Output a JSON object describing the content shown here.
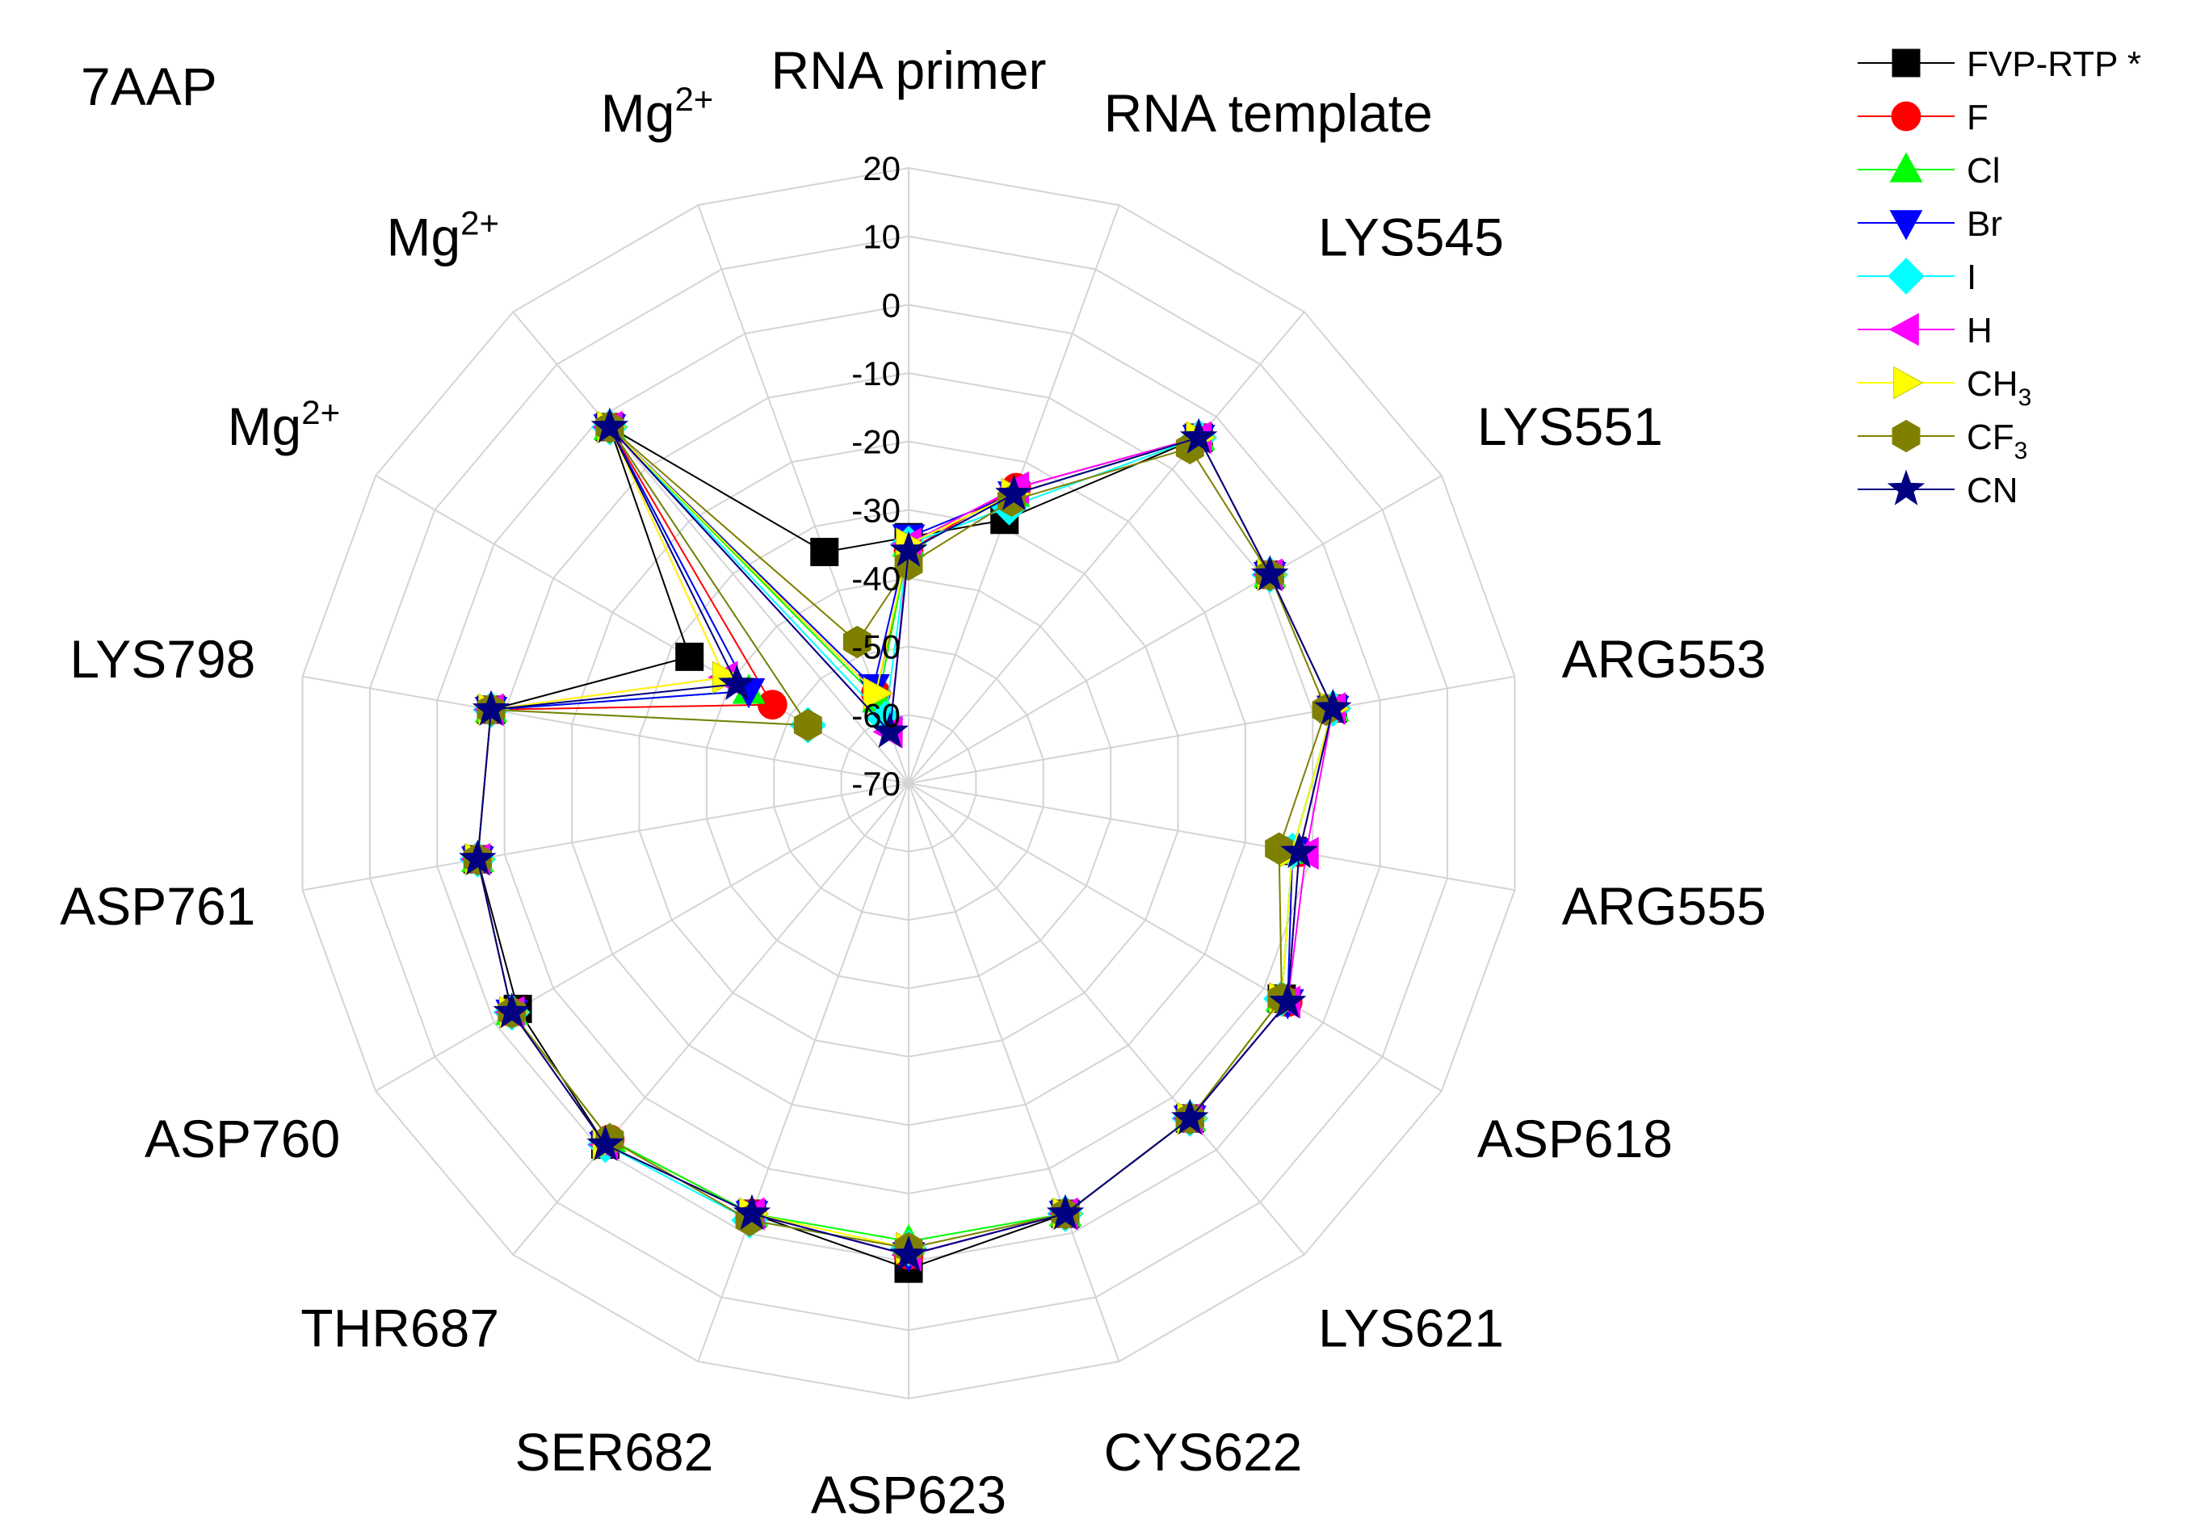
{
  "chart_data": {
    "type": "radar",
    "title": "7AAP",
    "rlim": [
      -70,
      20
    ],
    "ticks": [
      "20",
      "10",
      "0",
      "-10",
      "-20",
      "-30",
      "-40",
      "-50",
      "-60",
      "-70"
    ],
    "tick_values": [
      20,
      10,
      0,
      -10,
      -20,
      -30,
      -40,
      -50,
      -60,
      -70
    ],
    "categories": [
      {
        "label": "RNA primer"
      },
      {
        "label": "RNA template"
      },
      {
        "label": "LYS545"
      },
      {
        "label": "LYS551"
      },
      {
        "label": "ARG553"
      },
      {
        "label": "ARG555"
      },
      {
        "label": "ASP618"
      },
      {
        "label": "LYS621"
      },
      {
        "label": "CYS622"
      },
      {
        "label": "ASP623"
      },
      {
        "label": "SER682"
      },
      {
        "label": "THR687"
      },
      {
        "label": "ASP760"
      },
      {
        "label": "ASP761"
      },
      {
        "label": "LYS798"
      },
      {
        "label": "Mg",
        "sup": "2+"
      },
      {
        "label": "Mg",
        "sup": "2+"
      },
      {
        "label": "Mg",
        "sup": "2+"
      }
    ],
    "legend_position": "top-right",
    "series": [
      {
        "name": "FVP-RTP *",
        "sub": "",
        "color": "#000000",
        "marker": "square",
        "values": [
          -34,
          -29,
          -4,
          -9,
          -7,
          -13,
          -7,
          -6,
          -3,
          1,
          -3,
          -1,
          -4,
          -6,
          -8,
          -33,
          -2,
          -34
        ]
      },
      {
        "name": "F",
        "sub": "",
        "color": "#ff0000",
        "marker": "circle",
        "values": [
          -36,
          -24,
          -4,
          -9,
          -7,
          -12,
          -6,
          -6,
          -3,
          -1,
          -3,
          -2,
          -3,
          -6,
          -8,
          -47,
          -2,
          -56
        ]
      },
      {
        "name": "Cl",
        "sub": "",
        "color": "#00ff00",
        "marker": "triangle-up",
        "values": [
          -35,
          -25,
          -4,
          -9,
          -7,
          -13,
          -7,
          -6,
          -3,
          -3,
          -3,
          -2,
          -3,
          -6,
          -8,
          -43,
          -2,
          -57
        ]
      },
      {
        "name": "Br",
        "sub": "",
        "color": "#0000ff",
        "marker": "triangle-down",
        "values": [
          -34,
          -25,
          -4,
          -9,
          -7,
          -13,
          -6,
          -6,
          -3,
          -1,
          -3,
          -1,
          -3,
          -6,
          -8,
          -43,
          -2,
          -55
        ]
      },
      {
        "name": "I",
        "sub": "",
        "color": "#00ffff",
        "marker": "diamond",
        "values": [
          -35,
          -27,
          -4,
          -9,
          -7,
          -13,
          -7,
          -6,
          -3,
          -2,
          -2,
          -1,
          -3,
          -6,
          -8,
          -53,
          -2,
          -60
        ]
      },
      {
        "name": "H",
        "sub": "",
        "color": "#ff00ff",
        "marker": "triangle-left",
        "values": [
          -35,
          -24,
          -4,
          -9,
          -7,
          -11,
          -6,
          -6,
          -3,
          -1,
          -3,
          -1,
          -3,
          -6,
          -8,
          -39,
          -2,
          -62
        ]
      },
      {
        "name": "CH",
        "sub": "3",
        "color": "#ffff00",
        "marker": "triangle-right",
        "values": [
          -35,
          -25,
          -4,
          -9,
          -7,
          -13,
          -7,
          -6,
          -3,
          -2,
          -3,
          -1,
          -3,
          -6,
          -8,
          -39,
          -2,
          -56
        ]
      },
      {
        "name": "CF",
        "sub": "3",
        "color": "#808000",
        "marker": "hexagon",
        "values": [
          -38,
          -26,
          -6,
          -9,
          -8,
          -15,
          -7,
          -6,
          -3,
          -2,
          -2,
          -2,
          -3,
          -6,
          -8,
          -53,
          -2,
          -48
        ]
      },
      {
        "name": "CN",
        "sub": "",
        "color": "#000080",
        "marker": "star",
        "values": [
          -36,
          -25,
          -4,
          -9,
          -7,
          -12,
          -6,
          -6,
          -3,
          -1,
          -3,
          -1,
          -3,
          -6,
          -8,
          -41,
          -2,
          -62
        ]
      }
    ]
  }
}
